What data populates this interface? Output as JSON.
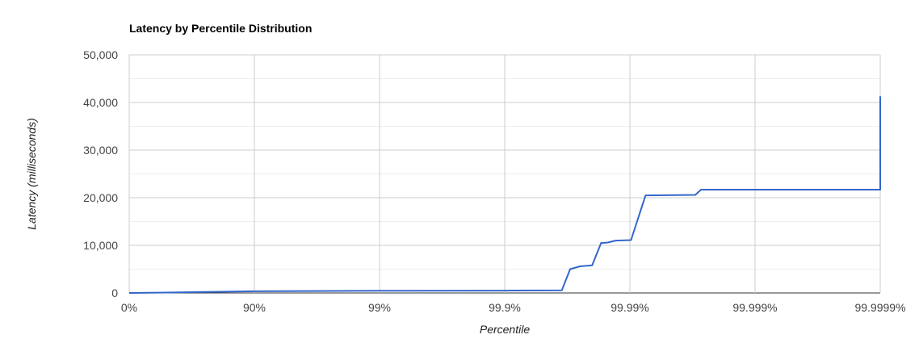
{
  "chart_data": {
    "type": "line",
    "title": "Latency by Percentile Distribution",
    "xlabel": "Percentile",
    "ylabel": "Latency (milliseconds)",
    "x_scale": "log-percentile",
    "x_ticks": [
      "0%",
      "90%",
      "99%",
      "99.9%",
      "99.99%",
      "99.999%",
      "99.9999%"
    ],
    "y_ticks": [
      "0",
      "10,000",
      "20,000",
      "30,000",
      "40,000",
      "50,000"
    ],
    "ylim": [
      0,
      50000
    ],
    "grid": true,
    "legend": "none",
    "series": [
      {
        "color": "#3366cc",
        "points": [
          {
            "x": "0%",
            "y": 0
          },
          {
            "x": "50%",
            "y": 80
          },
          {
            "x": "75%",
            "y": 200
          },
          {
            "x": "90%",
            "y": 350
          },
          {
            "x": "99%",
            "y": 450
          },
          {
            "x": "99.9%",
            "y": 500
          },
          {
            "x": "99.965%",
            "y": 550
          },
          {
            "x": "99.97%",
            "y": 5000
          },
          {
            "x": "99.975%",
            "y": 5600
          },
          {
            "x": "99.98%",
            "y": 5800
          },
          {
            "x": "99.983%",
            "y": 10500
          },
          {
            "x": "99.985%",
            "y": 10600
          },
          {
            "x": "99.987%",
            "y": 11000
          },
          {
            "x": "99.9902%",
            "y": 11100
          },
          {
            "x": "99.9925%",
            "y": 20500
          },
          {
            "x": "99.997%",
            "y": 20600
          },
          {
            "x": "99.9973%",
            "y": 21700
          },
          {
            "x": "99.9999%",
            "y": 21700
          },
          {
            "x": "99.99992%",
            "y": 21700
          },
          {
            "x": "99.99994%",
            "y": 41300
          }
        ]
      }
    ]
  }
}
